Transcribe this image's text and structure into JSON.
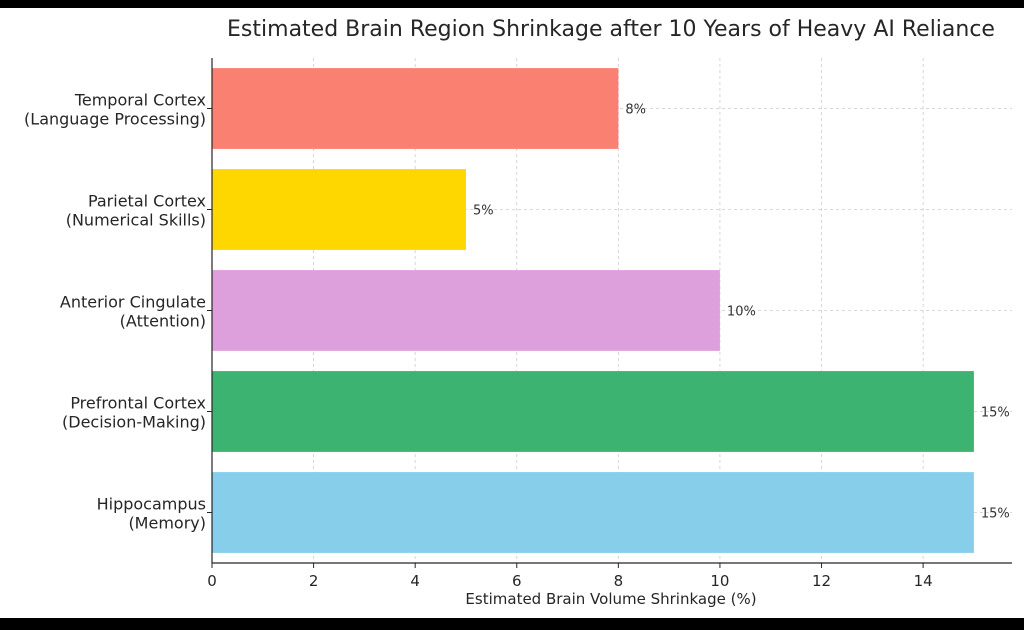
{
  "chart_data": {
    "type": "bar",
    "orientation": "horizontal",
    "title": "Estimated Brain Region Shrinkage after 10 Years of Heavy AI Reliance",
    "xlabel": "Estimated Brain Volume Shrinkage (%)",
    "ylabel": "",
    "xlim": [
      0,
      15.75
    ],
    "xticks": [
      0,
      2,
      4,
      6,
      8,
      10,
      12,
      14
    ],
    "grid": true,
    "bars": [
      {
        "line1": "Temporal Cortex",
        "line2": "(Language Processing)",
        "value": 8,
        "label": "8%",
        "color": "#fa8072"
      },
      {
        "line1": "Parietal Cortex",
        "line2": "(Numerical Skills)",
        "value": 5,
        "label": "5%",
        "color": "#ffd700"
      },
      {
        "line1": "Anterior Cingulate",
        "line2": "(Attention)",
        "value": 10,
        "label": "10%",
        "color": "#dda0dd"
      },
      {
        "line1": "Prefrontal Cortex",
        "line2": "(Decision-Making)",
        "value": 15,
        "label": "15%",
        "color": "#3cb371"
      },
      {
        "line1": "Hippocampus",
        "line2": "(Memory)",
        "value": 15,
        "label": "15%",
        "color": "#87ceeb"
      }
    ]
  }
}
